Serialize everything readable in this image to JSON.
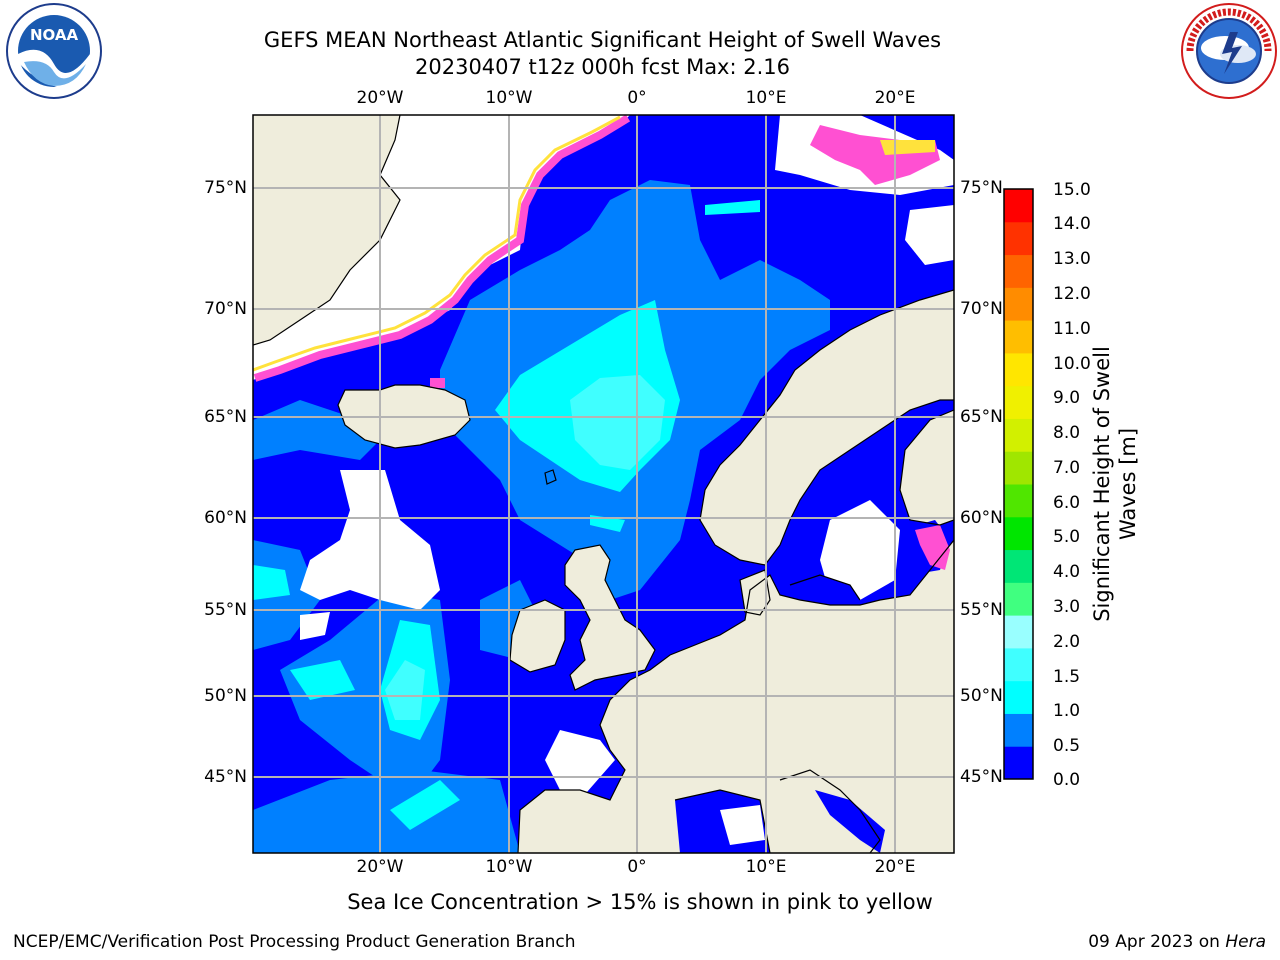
{
  "header": {
    "title_line1": "GEFS MEAN Northeast Atlantic Significant Height of Swell Waves",
    "title_line2": "20230407 t12z 000h fcst   Max: 2.16"
  },
  "logos": {
    "left": {
      "name": "noaa-logo",
      "text": "NOAA",
      "ring_text": "NATIONAL OCEANIC AND ATMOSPHERIC ADMINISTRATION · U.S. DEPARTMENT OF COMMERCE"
    },
    "right": {
      "name": "nws-logo",
      "ring_text": "NATIONAL WEATHER SERVICE"
    }
  },
  "map": {
    "lon_ticks_top": [
      "20°W",
      "10°W",
      "0°",
      "10°E",
      "20°E"
    ],
    "lon_ticks_bottom": [
      "20°W",
      "10°W",
      "0°",
      "10°E",
      "20°E"
    ],
    "lat_ticks_left": [
      "75°N",
      "70°N",
      "65°N",
      "60°N",
      "55°N",
      "50°N",
      "45°N"
    ],
    "lat_ticks_right": [
      "75°N",
      "70°N",
      "65°N",
      "60°N",
      "55°N",
      "50°N",
      "45°N"
    ],
    "colors": {
      "land": "#efeddc",
      "grid": "#b4b4b4",
      "coast": "#000000",
      "ice_pink": "#ff50d2",
      "ice_yellow": "#ffe23c",
      "no_data": "#ffffff"
    }
  },
  "colorbar": {
    "label_line1": "Significant Height of Swell",
    "label_line2": "Waves [m]",
    "ticks": [
      "15.0",
      "14.0",
      "13.0",
      "12.0",
      "11.0",
      "10.0",
      "9.0",
      "8.0",
      "7.0",
      "6.0",
      "5.0",
      "4.0",
      "3.0",
      "2.0",
      "1.5",
      "1.0",
      "0.5",
      "0.0"
    ],
    "colors": [
      "#0000ff",
      "#0080ff",
      "#00ffff",
      "#40ffff",
      "#99ffff",
      "#40ff80",
      "#00e676",
      "#00e600",
      "#50e600",
      "#a0e600",
      "#d2f000",
      "#f0f000",
      "#ffe600",
      "#ffbe00",
      "#ff8c00",
      "#ff6400",
      "#ff3200",
      "#ff0000"
    ]
  },
  "caption": "Sea Ice Concentration > 15% is shown in pink to yellow",
  "footer": {
    "left": "NCEP/EMC/Verification Post Processing Product Generation Branch",
    "right_prefix": "09 Apr 2023 on ",
    "right_host": "Hera"
  }
}
